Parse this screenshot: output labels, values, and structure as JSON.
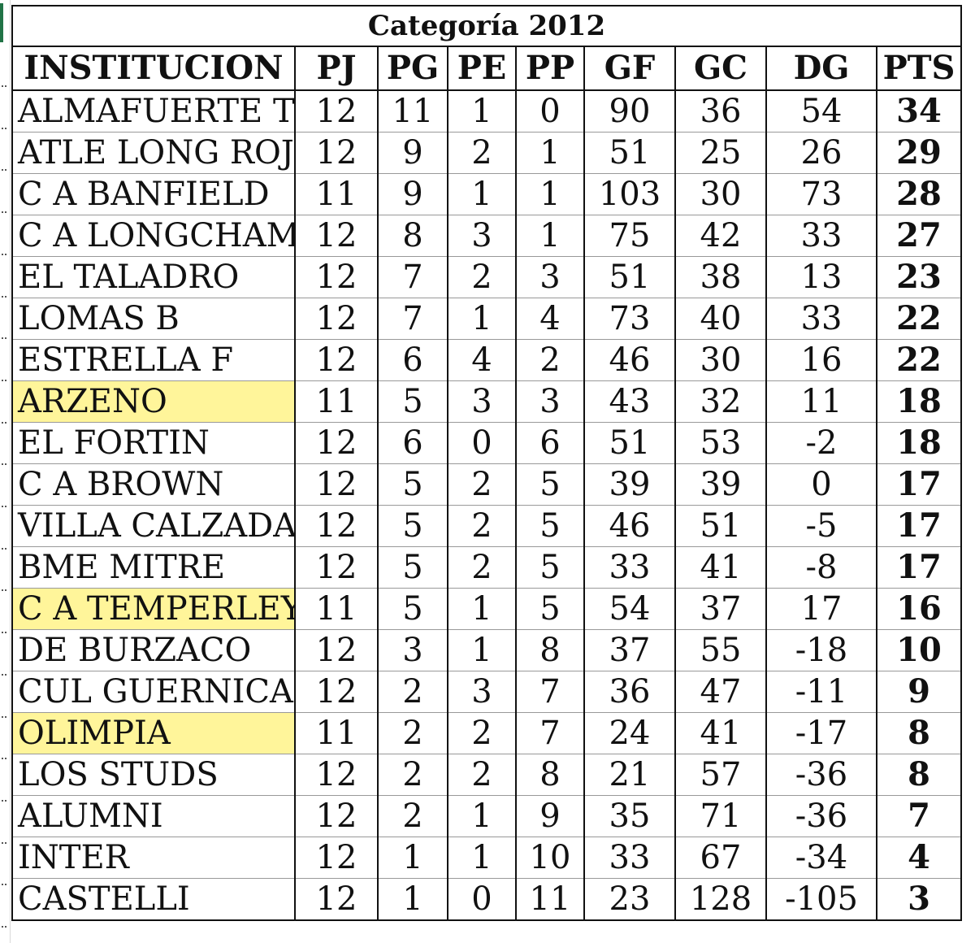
{
  "title": "Categoría  2012",
  "columns": [
    "INSTITUCION",
    "PJ",
    "PG",
    "PE",
    "PP",
    "GF",
    "GC",
    "DG",
    "PTS"
  ],
  "highlight_color": "#fff59a",
  "rows": [
    {
      "name": "ALMAFUERTE T",
      "pj": "12",
      "pg": "11",
      "pe": "1",
      "pp": "0",
      "gf": "90",
      "gc": "36",
      "dg": "54",
      "pts": "34",
      "highlight": false
    },
    {
      "name": "ATLE LONG ROJO",
      "pj": "12",
      "pg": "9",
      "pe": "2",
      "pp": "1",
      "gf": "51",
      "gc": "25",
      "dg": "26",
      "pts": "29",
      "highlight": false
    },
    {
      "name": "C A BANFIELD",
      "pj": "11",
      "pg": "9",
      "pe": "1",
      "pp": "1",
      "gf": "103",
      "gc": "30",
      "dg": "73",
      "pts": "28",
      "highlight": false
    },
    {
      "name": "C A LONGCHAMPS",
      "pj": "12",
      "pg": "8",
      "pe": "3",
      "pp": "1",
      "gf": "75",
      "gc": "42",
      "dg": "33",
      "pts": "27",
      "highlight": false
    },
    {
      "name": "EL TALADRO",
      "pj": "12",
      "pg": "7",
      "pe": "2",
      "pp": "3",
      "gf": "51",
      "gc": "38",
      "dg": "13",
      "pts": "23",
      "highlight": false
    },
    {
      "name": "LOMAS B",
      "pj": "12",
      "pg": "7",
      "pe": "1",
      "pp": "4",
      "gf": "73",
      "gc": "40",
      "dg": "33",
      "pts": "22",
      "highlight": false
    },
    {
      "name": "ESTRELLA F",
      "pj": "12",
      "pg": "6",
      "pe": "4",
      "pp": "2",
      "gf": "46",
      "gc": "30",
      "dg": "16",
      "pts": "22",
      "highlight": false
    },
    {
      "name": "ARZENO",
      "pj": "11",
      "pg": "5",
      "pe": "3",
      "pp": "3",
      "gf": "43",
      "gc": "32",
      "dg": "11",
      "pts": "18",
      "highlight": true
    },
    {
      "name": "EL FORTIN",
      "pj": "12",
      "pg": "6",
      "pe": "0",
      "pp": "6",
      "gf": "51",
      "gc": "53",
      "dg": "-2",
      "pts": "18",
      "highlight": false
    },
    {
      "name": "C A BROWN",
      "pj": "12",
      "pg": "5",
      "pe": "2",
      "pp": "5",
      "gf": "39",
      "gc": "39",
      "dg": "0",
      "pts": "17",
      "highlight": false
    },
    {
      "name": "VILLA CALZADA",
      "pj": "12",
      "pg": "5",
      "pe": "2",
      "pp": "5",
      "gf": "46",
      "gc": "51",
      "dg": "-5",
      "pts": "17",
      "highlight": false
    },
    {
      "name": "BME MITRE",
      "pj": "12",
      "pg": "5",
      "pe": "2",
      "pp": "5",
      "gf": "33",
      "gc": "41",
      "dg": "-8",
      "pts": "17",
      "highlight": false
    },
    {
      "name": "C A TEMPERLEY",
      "pj": "11",
      "pg": "5",
      "pe": "1",
      "pp": "5",
      "gf": "54",
      "gc": "37",
      "dg": "17",
      "pts": "16",
      "highlight": true
    },
    {
      "name": "DE BURZACO",
      "pj": "12",
      "pg": "3",
      "pe": "1",
      "pp": "8",
      "gf": "37",
      "gc": "55",
      "dg": "-18",
      "pts": "10",
      "highlight": false
    },
    {
      "name": "CUL GUERNICA",
      "pj": "12",
      "pg": "2",
      "pe": "3",
      "pp": "7",
      "gf": "36",
      "gc": "47",
      "dg": "-11",
      "pts": "9",
      "highlight": false
    },
    {
      "name": "OLIMPIA",
      "pj": "11",
      "pg": "2",
      "pe": "2",
      "pp": "7",
      "gf": "24",
      "gc": "41",
      "dg": "-17",
      "pts": "8",
      "highlight": true
    },
    {
      "name": "LOS STUDS",
      "pj": "12",
      "pg": "2",
      "pe": "2",
      "pp": "8",
      "gf": "21",
      "gc": "57",
      "dg": "-36",
      "pts": "8",
      "highlight": false
    },
    {
      "name": "ALUMNI",
      "pj": "12",
      "pg": "2",
      "pe": "1",
      "pp": "9",
      "gf": "35",
      "gc": "71",
      "dg": "-36",
      "pts": "7",
      "highlight": false
    },
    {
      "name": "INTER",
      "pj": "12",
      "pg": "1",
      "pe": "1",
      "pp": "10",
      "gf": "33",
      "gc": "67",
      "dg": "-34",
      "pts": "4",
      "highlight": false
    },
    {
      "name": "CASTELLI",
      "pj": "12",
      "pg": "1",
      "pe": "0",
      "pp": "11",
      "gf": "23",
      "gc": "128",
      "dg": "-105",
      "pts": "3",
      "highlight": false
    }
  ]
}
